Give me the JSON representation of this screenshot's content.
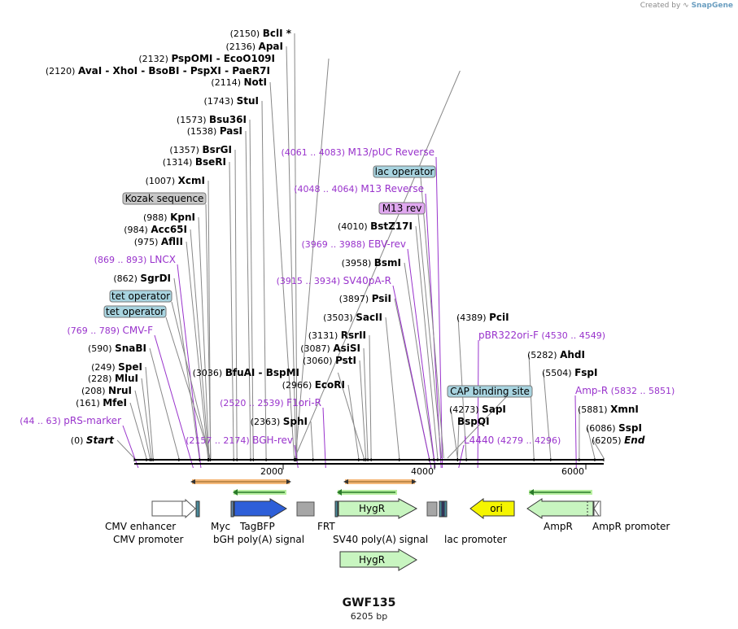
{
  "credit": {
    "prefix": "Created by",
    "brand": "SnapGene"
  },
  "plasmid": {
    "name": "GWF135",
    "length_label": "6205 bp"
  },
  "colors": {
    "site_line": "#888888",
    "primer": "#9933cc",
    "feature_label": "#9933cc",
    "backbone": "#000000"
  },
  "sites": [
    {
      "pos": "(2150)",
      "name": "BclI *",
      "at": 2150
    },
    {
      "pos": "(2136)",
      "name": "ApaI",
      "at": 2136
    },
    {
      "pos": "(2132)",
      "name": "PspOMI",
      "extra": "- EcoO109I",
      "at": 2132
    },
    {
      "pos": "(2120)",
      "name": "AvaI",
      "extra": "- XhoI   - BsoBI   - PspXI   - PaeR7I",
      "at": 2120
    },
    {
      "pos": "(2114)",
      "name": "NotI",
      "at": 2114
    },
    {
      "pos": "(1743)",
      "name": "StuI",
      "at": 1743
    },
    {
      "pos": "(1573)",
      "name": "Bsu36I",
      "at": 1573
    },
    {
      "pos": "(1538)",
      "name": "PasI",
      "at": 1538
    },
    {
      "pos": "(1357)",
      "name": "BsrGI",
      "at": 1357
    },
    {
      "pos": "(1314)",
      "name": "BseRI",
      "at": 1314
    },
    {
      "pos": "(1007)",
      "name": "XcmI",
      "at": 1007
    },
    {
      "pos": "(988)",
      "name": "KpnI",
      "at": 988
    },
    {
      "pos": "(984)",
      "name": "Acc65I",
      "at": 984
    },
    {
      "pos": "(975)",
      "name": "AflII",
      "at": 975
    },
    {
      "pos": "(862)",
      "name": "SgrDI",
      "at": 862
    },
    {
      "pos": "(590)",
      "name": "SnaBI",
      "at": 590
    },
    {
      "pos": "(249)",
      "name": "SpeI",
      "at": 249
    },
    {
      "pos": "(228)",
      "name": "MluI",
      "at": 228
    },
    {
      "pos": "(208)",
      "name": "NruI",
      "at": 208
    },
    {
      "pos": "(161)",
      "name": "MfeI",
      "at": 161
    },
    {
      "pos": "(0)",
      "name": "Start",
      "italic": true,
      "at": 0
    },
    {
      "pos": "(3036)",
      "name": "BfuAI",
      "extra": "- BspMI",
      "at": 3036
    },
    {
      "pos": "(2966)",
      "name": "EcoRI",
      "at": 2966
    },
    {
      "pos": "(2363)",
      "name": "SphI",
      "at": 2363
    },
    {
      "pos": "(3131)",
      "name": "RsrII",
      "at": 3131
    },
    {
      "pos": "(3087)",
      "name": "AsiSI",
      "at": 3087
    },
    {
      "pos": "(3060)",
      "name": "PstI",
      "at": 3060
    },
    {
      "pos": "(3503)",
      "name": "SacII",
      "at": 3503
    },
    {
      "pos": "(3897)",
      "name": "PsiI",
      "at": 3897
    },
    {
      "pos": "(3958)",
      "name": "BsmI",
      "at": 3958
    },
    {
      "pos": "(4010)",
      "name": "BstZ17I",
      "at": 4010
    },
    {
      "pos": "(4389)",
      "name": "PciI",
      "at": 4389
    },
    {
      "pos": "(5282)",
      "name": "AhdI",
      "at": 5282
    },
    {
      "pos": "(5504)",
      "name": "FspI",
      "at": 5504
    },
    {
      "pos": "(5881)",
      "name": "XmnI",
      "at": 5881
    },
    {
      "pos": "(6086)",
      "name": "SspI",
      "at": 6086
    },
    {
      "pos": "(6205)",
      "name": "End",
      "italic": true,
      "at": 6205
    },
    {
      "pos": "(4273)",
      "name": "SapI",
      "at": 4273
    },
    {
      "pos": "",
      "name": "BspQI",
      "at": 4273
    }
  ],
  "primers": [
    {
      "range": "(4061 .. 4083)",
      "name": "M13/pUC Reverse",
      "at": 4072
    },
    {
      "range": "(4048 .. 4064)",
      "name": "M13 Reverse",
      "at": 4056
    },
    {
      "range": "(3969 .. 3988)",
      "name": "EBV-rev",
      "at": 3978
    },
    {
      "range": "(3915 .. 3934)",
      "name": "SV40pA-R",
      "at": 3924
    },
    {
      "range": "(869 .. 893)",
      "name": "LNCX",
      "at": 881
    },
    {
      "range": "(769 .. 789)",
      "name": "CMV-F",
      "at": 779
    },
    {
      "range": "(44 .. 63)",
      "name": "pRS-marker",
      "at": 53
    },
    {
      "range": "(2157 .. 2174)",
      "name": "BGH-rev",
      "at": 2165
    },
    {
      "range": "(2520 .. 2539)",
      "name": "F1ori-R",
      "at": 2530
    },
    {
      "range": "(4530 .. 4549)",
      "name": "pBR322ori-F",
      "at": 4540
    },
    {
      "range": "(5832 .. 5851)",
      "name": "Amp-R",
      "at": 5842
    },
    {
      "range": "(4279 .. 4296)",
      "name": "L4440",
      "at": 4288
    }
  ],
  "boxed_features": [
    {
      "name": "Kozak sequence",
      "kind": "gray",
      "at": 1010
    },
    {
      "name": "tet operator",
      "kind": "blue",
      "at": 1000
    },
    {
      "name": "tet operator",
      "kind": "blue",
      "at": 1005
    },
    {
      "name": "lac operator",
      "kind": "blue",
      "at": 4090
    },
    {
      "name": "M13 rev",
      "kind": "purple",
      "at": 4060
    },
    {
      "name": "CAP binding site",
      "kind": "blue",
      "at": 4140
    }
  ],
  "axis_ticks": [
    "2000",
    "4000",
    "6000"
  ],
  "features": [
    {
      "name": "CMV enhancer"
    },
    {
      "name": "CMV promoter"
    },
    {
      "name": "Myc"
    },
    {
      "name": "TagBFP"
    },
    {
      "name": "bGH poly(A) signal"
    },
    {
      "name": "FRT"
    },
    {
      "name": "HygR"
    },
    {
      "name": "SV40 poly(A) signal"
    },
    {
      "name": "lac promoter"
    },
    {
      "name": "ori"
    },
    {
      "name": "AmpR"
    },
    {
      "name": "AmpR promoter"
    },
    {
      "name": "HygR"
    }
  ]
}
